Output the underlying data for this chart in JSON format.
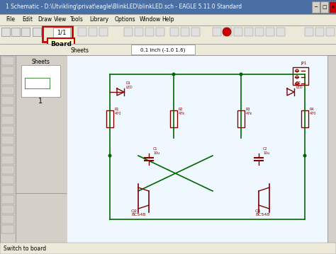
{
  "title": "1 Schematic - D:\\Utvikling\\privat\\eagle\\BlinkLED\\blinkLED.sch - EAGLE 5.11.0 Standard",
  "menu_items": [
    "File",
    "Edit",
    "Draw",
    "View",
    "Tools",
    "Library",
    "Options",
    "Window",
    "Help"
  ],
  "bg_title": "#d4d0c8",
  "bg_main": "#ece9d8",
  "bg_canvas": "#ffffff",
  "bg_left_panel": "#d4d0c8",
  "schematic_bg": "#f0f8ff",
  "wire_color": "#006600",
  "component_color": "#800000",
  "highlight_red": "#cc0000",
  "status_text": "Switch to board",
  "tab_text": "0.1 inch (-1.0 1.6)",
  "sheets_text": "Sheets",
  "board_tooltip": "Board",
  "zoom_text": "1/1"
}
